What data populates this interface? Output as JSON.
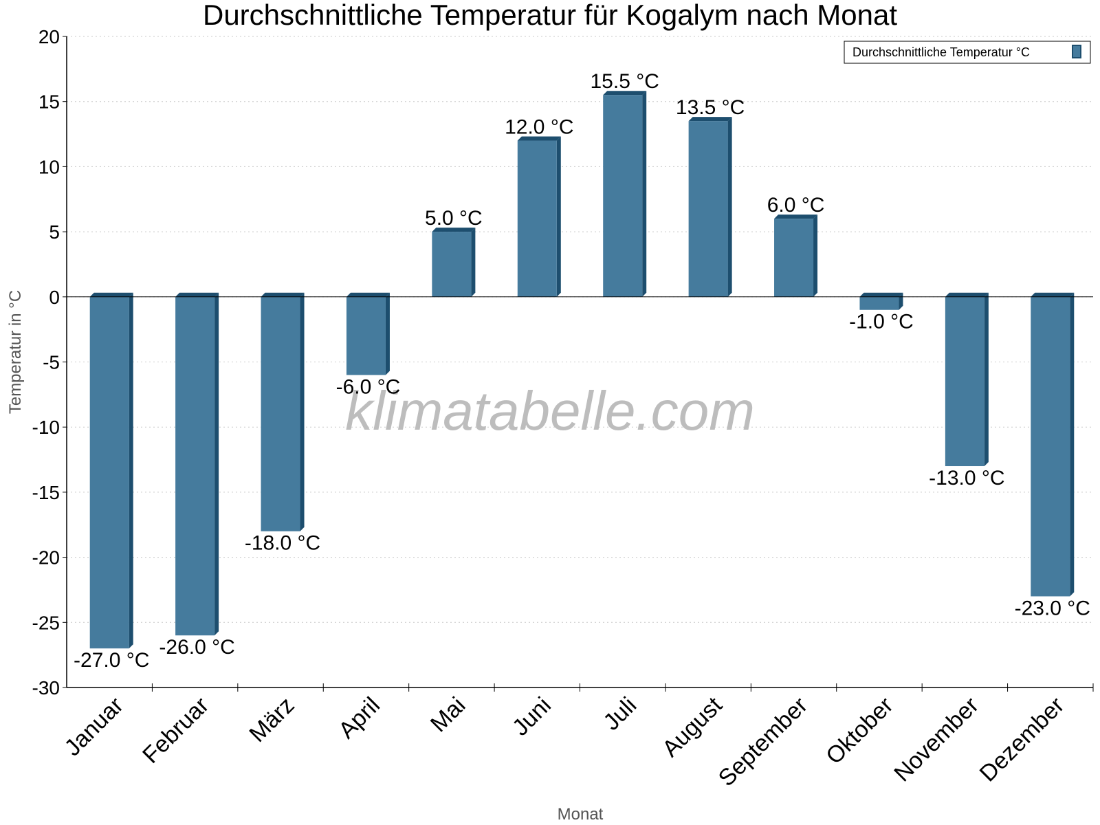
{
  "chart_data": {
    "type": "bar",
    "title": "Durchschnittliche Temperatur für Kogalym nach Monat",
    "xlabel": "Monat",
    "ylabel": "Temperatur in °C",
    "categories": [
      "Januar",
      "Februar",
      "März",
      "April",
      "Mai",
      "Juni",
      "Juli",
      "August",
      "September",
      "Oktober",
      "November",
      "Dezember"
    ],
    "series": [
      {
        "name": "Durchschnittliche Temperatur °C",
        "values": [
          -27.0,
          -26.0,
          -18.0,
          -6.0,
          5.0,
          12.0,
          15.5,
          13.5,
          6.0,
          -1.0,
          -13.0,
          -23.0
        ],
        "color": "#457b9d",
        "shadow_color": "#1d4e6e"
      }
    ],
    "data_labels": [
      "-27.0 °C",
      "-26.0 °C",
      "-18.0 °C",
      "-6.0 °C",
      "5.0 °C",
      "12.0 °C",
      "15.5 °C",
      "13.5 °C",
      "6.0 °C",
      "-1.0 °C",
      "-13.0 °C",
      "-23.0 °C"
    ],
    "ylim": [
      -30,
      20
    ],
    "yticks": [
      20,
      15,
      10,
      5,
      0,
      -5,
      -10,
      -15,
      -20,
      -25,
      -30
    ],
    "grid": true,
    "legend_position": "top-right",
    "watermark": "klimatabelle.com"
  }
}
